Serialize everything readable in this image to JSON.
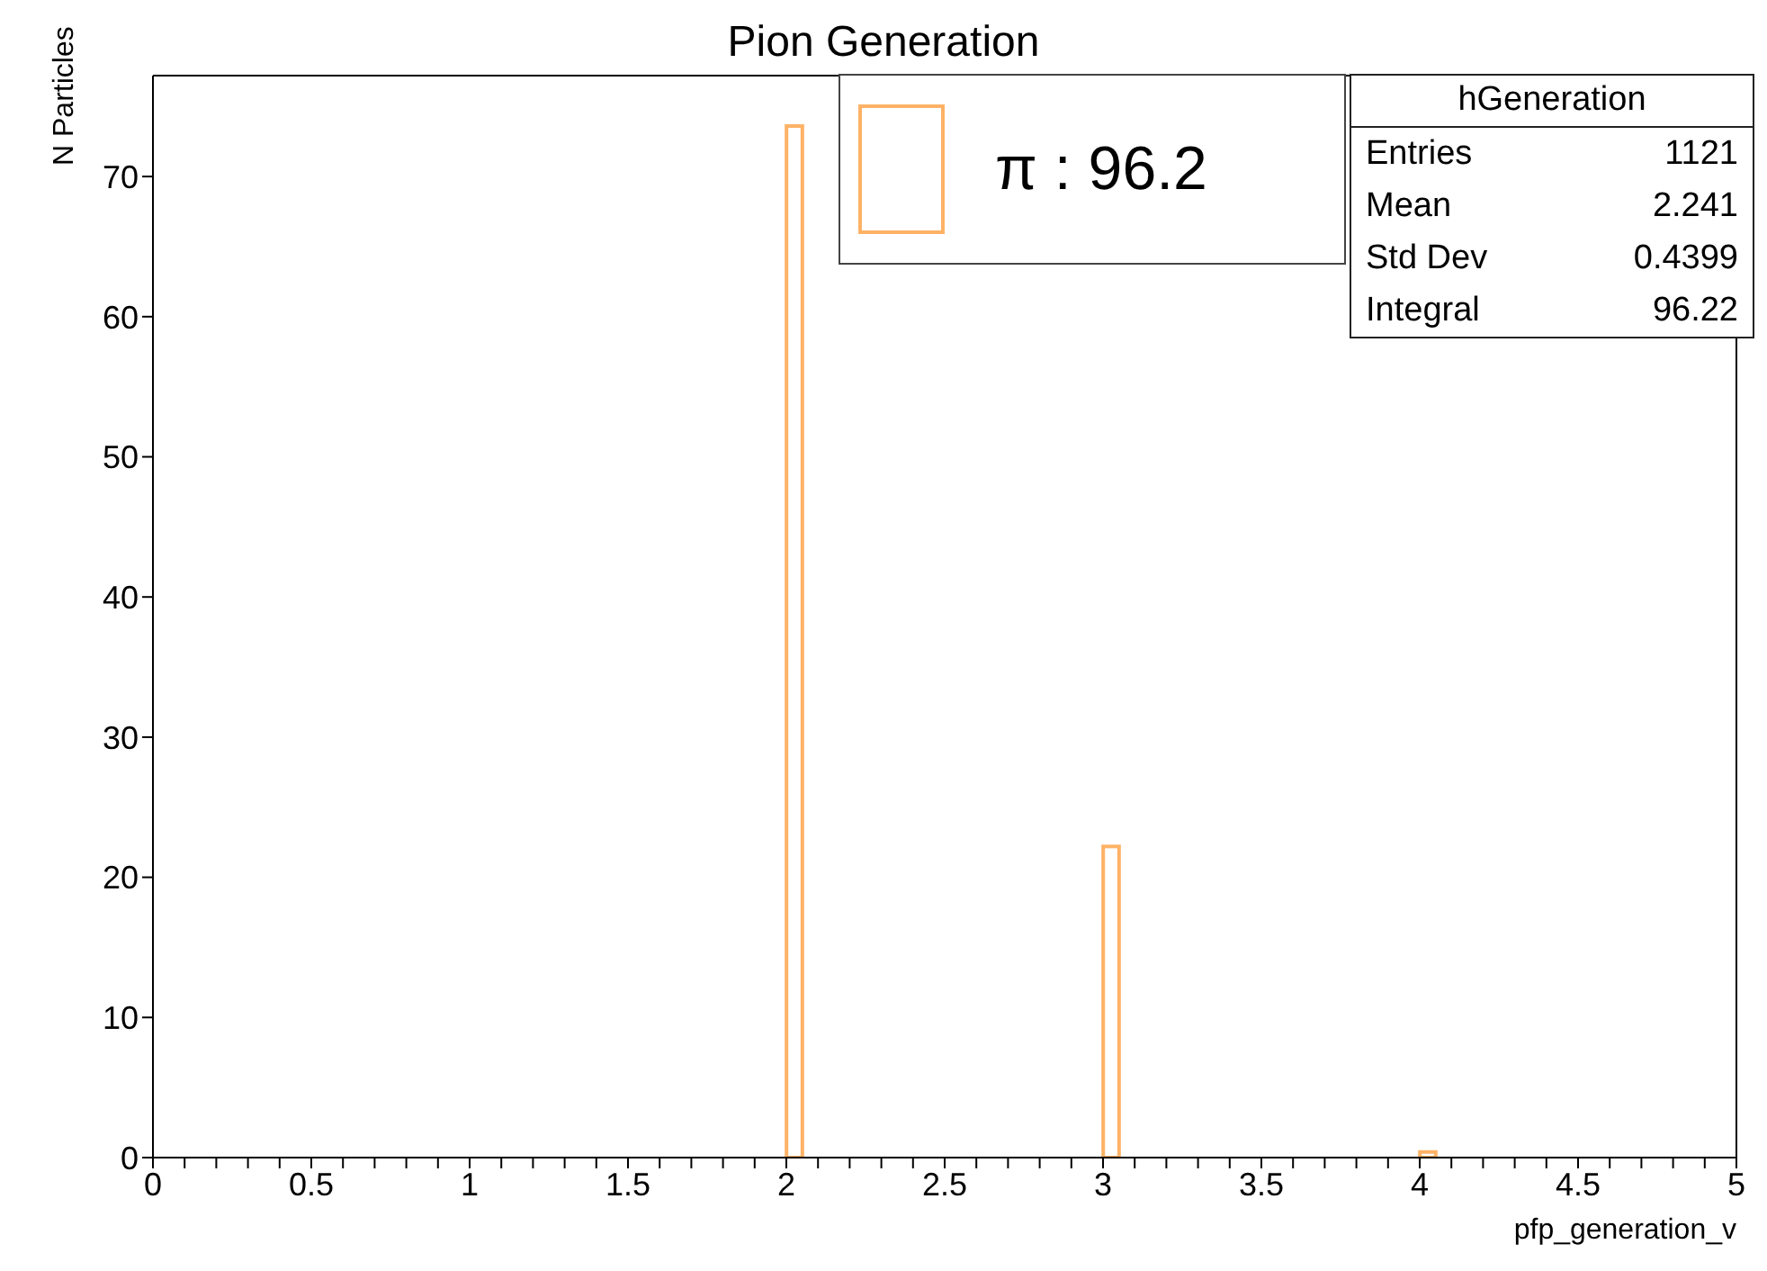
{
  "chart_data": {
    "type": "histogram",
    "title": "Pion Generation",
    "xlabel": "pfp_generation_v",
    "ylabel": "N Particles",
    "bins": [
      0,
      0.05,
      0.1,
      0.15,
      0.2,
      0.25,
      0.3,
      0.35,
      0.4,
      0.45,
      0.5,
      0.55,
      0.6,
      0.65,
      0.7,
      0.75,
      0.8,
      0.85,
      0.9,
      0.95,
      1,
      1.05,
      1.1,
      1.15,
      1.2,
      1.25,
      1.3,
      1.35,
      1.4,
      1.45,
      1.5,
      1.55,
      1.6,
      1.65,
      1.7,
      1.75,
      1.8,
      1.85,
      1.9,
      1.95,
      2,
      2.05,
      2.1,
      2.15,
      2.2,
      2.25,
      2.3,
      2.35,
      2.4,
      2.45,
      2.5,
      2.55,
      2.6,
      2.65,
      2.7,
      2.75,
      2.8,
      2.85,
      2.9,
      2.95,
      3,
      3.05,
      3.1,
      3.15,
      3.2,
      3.25,
      3.3,
      3.35,
      3.4,
      3.45,
      3.5,
      3.55,
      3.6,
      3.65,
      3.7,
      3.75,
      3.8,
      3.85,
      3.9,
      3.95,
      4,
      4.05,
      4.1,
      4.15,
      4.2,
      4.25,
      4.3,
      4.35,
      4.4,
      4.45,
      4.5,
      4.55,
      4.6,
      4.65,
      4.7,
      4.75,
      4.8,
      4.85,
      4.9,
      4.95,
      5
    ],
    "series": [
      {
        "name": "π : 96.2",
        "color": "#ffb266",
        "values": [
          0,
          0,
          0,
          0,
          0,
          0,
          0,
          0,
          0,
          0,
          0,
          0,
          0,
          0,
          0,
          0,
          0,
          0,
          0,
          0,
          0,
          0,
          0,
          0,
          0,
          0,
          0,
          0,
          0,
          0,
          0,
          0,
          0,
          0,
          0,
          0,
          0,
          0,
          0,
          0,
          73.6,
          0,
          0,
          0,
          0,
          0,
          0,
          0,
          0,
          0,
          0,
          0,
          0,
          0,
          0,
          0,
          0,
          0,
          0,
          0,
          22.2,
          0,
          0,
          0,
          0,
          0,
          0,
          0,
          0,
          0,
          0,
          0,
          0,
          0,
          0,
          0,
          0,
          0,
          0,
          0,
          0.4,
          0,
          0,
          0,
          0,
          0,
          0,
          0,
          0,
          0,
          0,
          0,
          0,
          0,
          0,
          0,
          0,
          0,
          0,
          0
        ]
      }
    ],
    "xlim": [
      0,
      5
    ],
    "xticks": [
      0,
      {
        "value": 0.1,
        "label": null
      },
      {
        "value": 0.2,
        "label": null
      },
      {
        "value": 0.3,
        "label": null
      },
      {
        "value": 0.4,
        "label": null
      },
      0.5,
      {
        "value": 0.6,
        "label": null
      },
      {
        "value": 0.7,
        "label": null
      },
      {
        "value": 0.8,
        "label": null
      },
      {
        "value": 0.9,
        "label": null
      },
      1,
      {
        "value": 1.1,
        "label": null
      },
      {
        "value": 1.2,
        "label": null
      },
      {
        "value": 1.3,
        "label": null
      },
      {
        "value": 1.4,
        "label": null
      },
      1.5,
      {
        "value": 1.6,
        "label": null
      },
      {
        "value": 1.7,
        "label": null
      },
      {
        "value": 1.8,
        "label": null
      },
      {
        "value": 1.9,
        "label": null
      },
      2,
      {
        "value": 2.1,
        "label": null
      },
      {
        "value": 2.2,
        "label": null
      },
      {
        "value": 2.3,
        "label": null
      },
      {
        "value": 2.4,
        "label": null
      },
      2.5,
      {
        "value": 2.6,
        "label": null
      },
      {
        "value": 2.7,
        "label": null
      },
      {
        "value": 2.8,
        "label": null
      },
      {
        "value": 2.9,
        "label": null
      },
      3,
      {
        "value": 3.1,
        "label": null
      },
      {
        "value": 3.2,
        "label": null
      },
      {
        "value": 3.3,
        "label": null
      },
      {
        "value": 3.4,
        "label": null
      },
      3.5,
      {
        "value": 3.6,
        "label": null
      },
      {
        "value": 3.7,
        "label": null
      },
      {
        "value": 3.8,
        "label": null
      },
      {
        "value": 3.9,
        "label": null
      },
      4,
      {
        "value": 4.1,
        "label": null
      },
      {
        "value": 4.2,
        "label": null
      },
      {
        "value": 4.3,
        "label": null
      },
      {
        "value": 4.4,
        "label": null
      },
      4.5,
      {
        "value": 4.6,
        "label": null
      },
      {
        "value": 4.7,
        "label": null
      },
      {
        "value": 4.8,
        "label": null
      },
      {
        "value": 4.9,
        "label": null
      },
      5
    ],
    "ylim": [
      0,
      77.2
    ],
    "yticks": [
      0,
      10,
      20,
      30,
      40,
      50,
      60,
      70
    ],
    "legend": "top",
    "annotations": [
      "hGeneration",
      "Entries",
      "1121",
      "Mean",
      "2.241",
      "Std Dev",
      "0.4399",
      "Integral",
      "96.22"
    ]
  }
}
